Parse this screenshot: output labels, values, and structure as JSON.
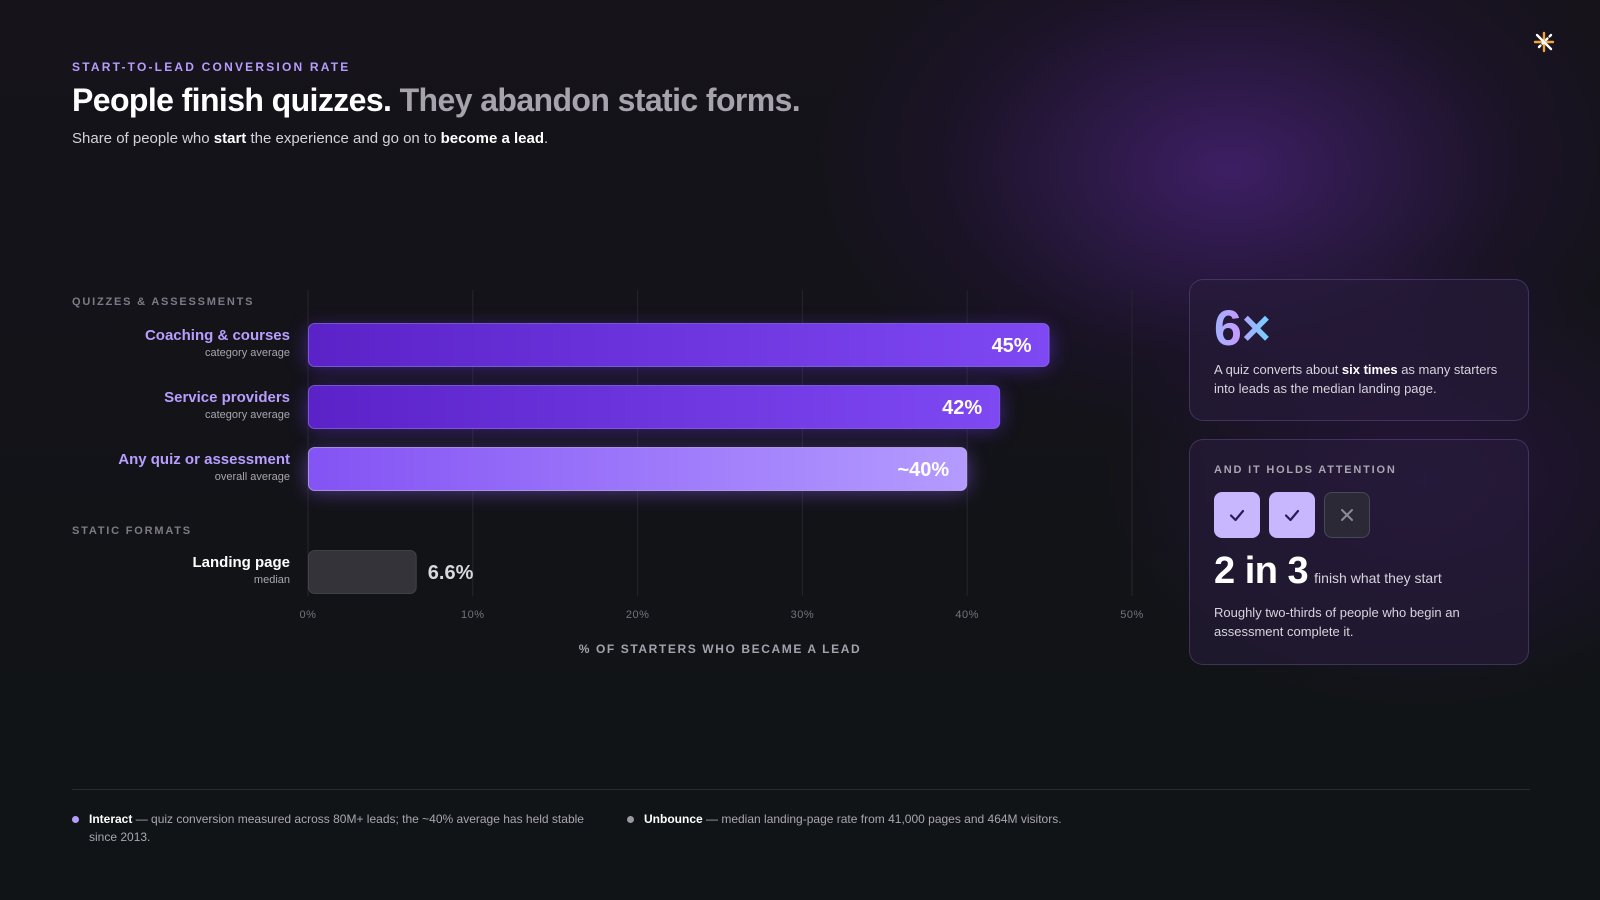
{
  "header": {
    "eyebrow": "START-TO-LEAD CONVERSION RATE",
    "headline_strong": "People finish quizzes.",
    "headline_muted": "They abandon static forms.",
    "subtitle_parts": [
      "Share of people who ",
      "start",
      " the experience and go on to ",
      "become a lead",
      "."
    ]
  },
  "groups": {
    "quizzes_label": "QUIZZES & ASSESSMENTS",
    "static_label": "STATIC FORMATS"
  },
  "rows": [
    {
      "name": "Coaching & courses",
      "sub": "category average"
    },
    {
      "name": "Service providers",
      "sub": "category average"
    },
    {
      "name": "Any quiz or assessment",
      "sub": "overall average"
    },
    {
      "name": "Landing page",
      "sub": "median"
    }
  ],
  "chart_data": {
    "type": "bar",
    "orientation": "horizontal",
    "categories": [
      "Coaching & courses",
      "Service providers",
      "Any quiz or assessment",
      "Landing page"
    ],
    "values": [
      45,
      42,
      40,
      6.6
    ],
    "data_labels": [
      "45%",
      "42%",
      "~40%",
      "6.6%"
    ],
    "xlabel": "% OF STARTERS WHO BECAME A LEAD",
    "xlim": [
      0,
      50
    ],
    "xticks": [
      0,
      10,
      20,
      30,
      40,
      50
    ],
    "xtick_labels": [
      "0%",
      "10%",
      "20%",
      "30%",
      "40%",
      "50%"
    ],
    "grid": true,
    "colors": {
      "bar_primary": "#6a2fe0",
      "bar_primary_light": "#7d49f2",
      "bar_highlight": "#9b73fb",
      "bar_static": "#34333a"
    }
  },
  "cards": {
    "six_x": {
      "stat": "6×",
      "text_parts": [
        "A quiz converts about ",
        "six times",
        " as many starters into leads as the median landing page."
      ]
    },
    "attention": {
      "eyebrow": "AND IT HOLDS ATTENTION",
      "marks": [
        "check-icon",
        "check-icon",
        "cross-icon"
      ],
      "ratio": "2 in 3",
      "ratio_caption": "finish what they start",
      "text": "Roughly two-thirds of people who begin an assessment complete it."
    }
  },
  "sources": [
    {
      "name": "Interact",
      "text": " — quiz conversion measured across 80M+ leads; the ~40% average has held stable since 2013.",
      "dot_color": "#b59cff"
    },
    {
      "name": "Unbounce",
      "text": " — median landing-page rate from 41,000 pages and 464M visitors.",
      "dot_color": "#9a98a2"
    }
  ]
}
